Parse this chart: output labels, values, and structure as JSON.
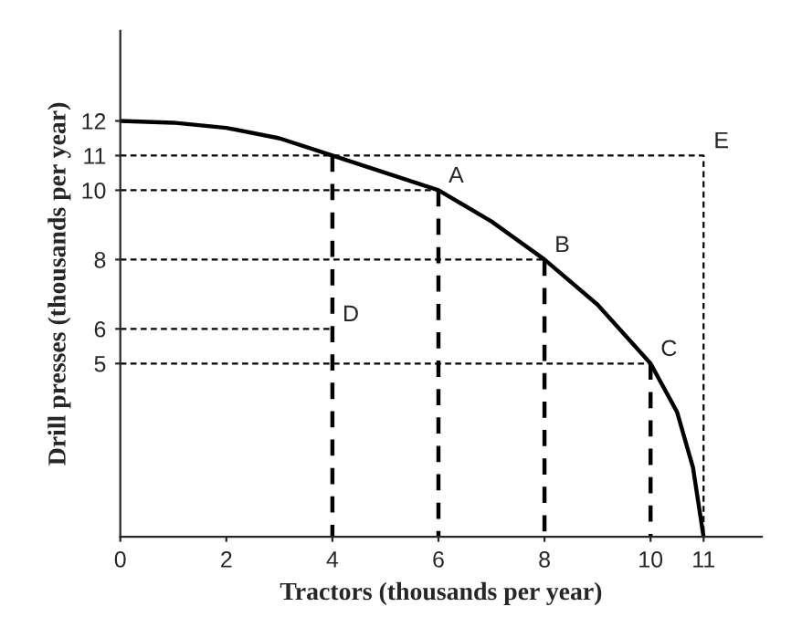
{
  "chart_data": {
    "type": "line",
    "xlabel": "Tractors (thousands per year)",
    "ylabel": "Drill presses (thousands per year)",
    "xlim": [
      0,
      12.1
    ],
    "ylim": [
      0,
      14.6
    ],
    "xticks": [
      0,
      2,
      4,
      6,
      8,
      10,
      11
    ],
    "yticks": [
      5,
      6,
      8,
      10,
      11,
      12
    ],
    "grid": false,
    "legend": false,
    "series": [
      {
        "color": "#000000",
        "line_style": "solid",
        "x": [
          0,
          1,
          2,
          3,
          4,
          5,
          6,
          7,
          8,
          9,
          10,
          10.5,
          10.8,
          11
        ],
        "values": [
          12,
          11.95,
          11.8,
          11.5,
          11,
          10.5,
          10,
          9.1,
          8,
          6.7,
          5,
          3.6,
          2,
          0
        ]
      },
      {
        "color": "#000000",
        "line_style": "dotted",
        "x": [
          0,
          11,
          11
        ],
        "values": [
          11,
          11,
          0
        ]
      },
      {
        "color": "#000000",
        "line_style": "dotted",
        "x": [
          0,
          6
        ],
        "values": [
          10,
          10
        ]
      },
      {
        "color": "#000000",
        "line_style": "dotted",
        "x": [
          0,
          8
        ],
        "values": [
          8,
          8
        ]
      },
      {
        "color": "#000000",
        "line_style": "dotted",
        "x": [
          0,
          4
        ],
        "values": [
          6,
          6
        ]
      },
      {
        "color": "#000000",
        "line_style": "dotted",
        "x": [
          0,
          10
        ],
        "values": [
          5,
          5
        ]
      },
      {
        "color": "#000000",
        "line_style": "dashed",
        "x": [
          4,
          4
        ],
        "values": [
          11,
          0
        ]
      },
      {
        "color": "#000000",
        "line_style": "dashed",
        "x": [
          6,
          6
        ],
        "values": [
          10,
          0
        ]
      },
      {
        "color": "#000000",
        "line_style": "dashed",
        "x": [
          8,
          8
        ],
        "values": [
          8,
          0
        ]
      },
      {
        "color": "#000000",
        "line_style": "dashed",
        "x": [
          10,
          10
        ],
        "values": [
          5,
          0
        ]
      }
    ],
    "annotations": [
      {
        "text": "A",
        "x": 6,
        "y": 10
      },
      {
        "text": "B",
        "x": 8,
        "y": 8
      },
      {
        "text": "C",
        "x": 10,
        "y": 5
      },
      {
        "text": "D",
        "x": 4,
        "y": 6
      },
      {
        "text": "E",
        "x": 11,
        "y": 11
      }
    ]
  }
}
